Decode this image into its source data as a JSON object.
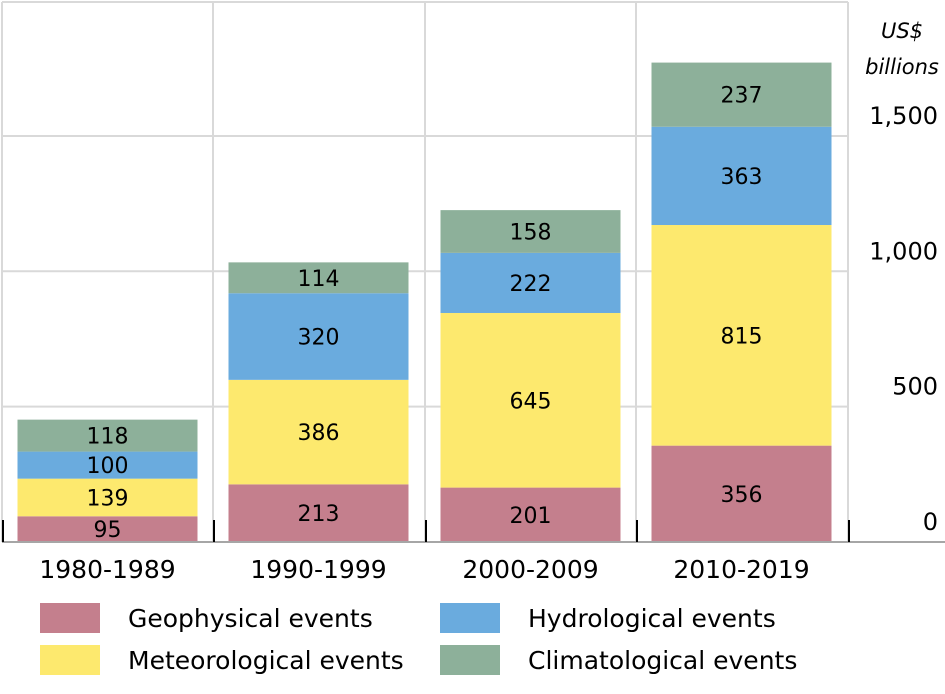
{
  "chart_data": {
    "type": "bar",
    "stacked": true,
    "categories": [
      "1980-1989",
      "1990-1999",
      "2000-2009",
      "2010-2019"
    ],
    "series": [
      {
        "name": "Geophysical events",
        "color": "#c47f8d",
        "values": [
          95,
          213,
          201,
          356
        ]
      },
      {
        "name": "Meteorological events",
        "color": "#fde96e",
        "values": [
          139,
          386,
          645,
          815
        ]
      },
      {
        "name": "Hydrological events",
        "color": "#6aabde",
        "values": [
          100,
          320,
          222,
          363
        ]
      },
      {
        "name": "Climatological events",
        "color": "#8db09a",
        "values": [
          118,
          114,
          158,
          237
        ]
      }
    ],
    "ylabel_line1": "US$",
    "ylabel_line2": "billions",
    "yticks": [
      0,
      500,
      1000,
      1500
    ],
    "ytick_labels": [
      "0",
      "500",
      "1,000",
      "1,500"
    ],
    "ylim": [
      0,
      1950
    ],
    "grid": true,
    "axis_side": "right",
    "legend_position": "bottom"
  }
}
